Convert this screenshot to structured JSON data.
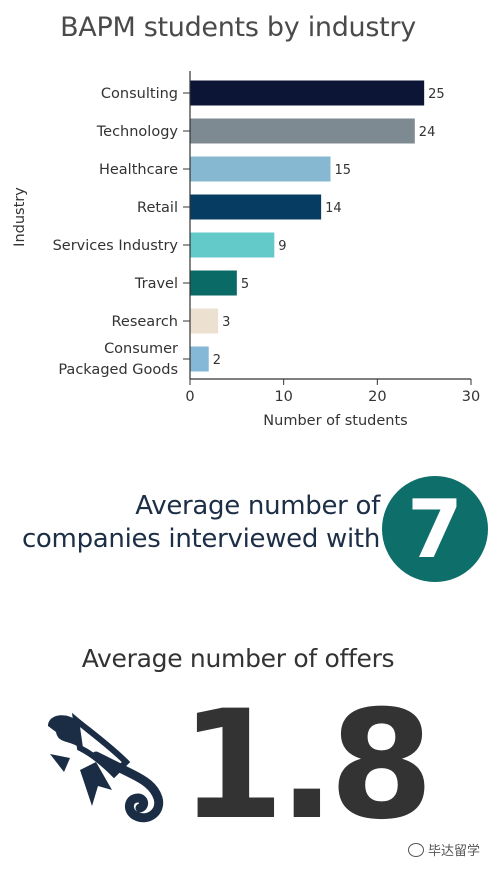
{
  "title": "BAPM students by industry",
  "chart_data": {
    "type": "bar",
    "orientation": "horizontal",
    "categories": [
      "Consulting",
      "Technology",
      "Healthcare",
      "Retail",
      "Services Industry",
      "Travel",
      "Research",
      "Consumer Packaged Goods"
    ],
    "values": [
      25,
      24,
      15,
      14,
      9,
      5,
      3,
      2
    ],
    "colors": [
      "#0c1536",
      "#7e8a92",
      "#86b8d2",
      "#073c62",
      "#63c9c9",
      "#0a6a65",
      "#ece0d0",
      "#85b7d6"
    ],
    "xlabel": "Number of students",
    "ylabel": "Industry",
    "xlim": [
      0,
      30
    ],
    "xticks": [
      0,
      10,
      20,
      30
    ],
    "grid": false
  },
  "stats": {
    "avg_companies_line1": "Average number of",
    "avg_companies_line2": "companies interviewed with",
    "avg_companies_value": "7",
    "avg_offers_label": "Average number of offers",
    "avg_offers_value": "1.8"
  },
  "icons": {
    "diploma": "diploma-scroll-icon",
    "watermark": "wechat-icon"
  },
  "watermark": "毕达留学"
}
